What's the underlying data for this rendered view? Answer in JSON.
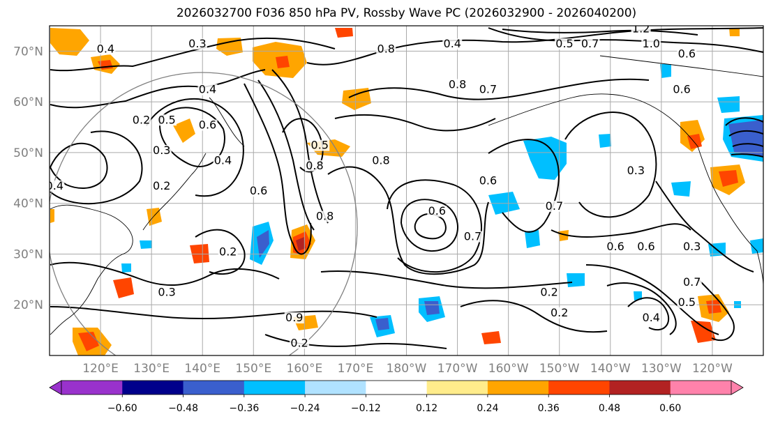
{
  "chart_data": {
    "type": "contour-map",
    "title": "2026032700 F036 850 hPa PV, Rossby Wave PC (2026032900 - 2026040200)",
    "lat_ticks": [
      {
        "lat": 70,
        "label": "70°N"
      },
      {
        "lat": 60,
        "label": "60°N"
      },
      {
        "lat": 50,
        "label": "50°N"
      },
      {
        "lat": 40,
        "label": "40°N"
      },
      {
        "lat": 30,
        "label": "30°N"
      },
      {
        "lat": 20,
        "label": "20°N"
      }
    ],
    "lon_ticks": [
      {
        "lon": 120,
        "label": "120°E"
      },
      {
        "lon": 130,
        "label": "130°E"
      },
      {
        "lon": 140,
        "label": "140°E"
      },
      {
        "lon": 150,
        "label": "150°E"
      },
      {
        "lon": 160,
        "label": "160°E"
      },
      {
        "lon": 170,
        "label": "170°E"
      },
      {
        "lon": 180,
        "label": "180°W"
      },
      {
        "lon": 190,
        "label": "170°W"
      },
      {
        "lon": 200,
        "label": "160°W"
      },
      {
        "lon": 210,
        "label": "150°W"
      },
      {
        "lon": 220,
        "label": "140°W"
      },
      {
        "lon": 230,
        "label": "130°W"
      },
      {
        "lon": 240,
        "label": "120°W"
      }
    ],
    "lon_range": [
      110,
      250
    ],
    "lat_range": [
      10,
      75
    ],
    "grid": true,
    "colorbar": {
      "levels": [
        -0.72,
        -0.6,
        -0.48,
        -0.36,
        -0.24,
        -0.12,
        0.12,
        0.24,
        0.36,
        0.48,
        0.6,
        0.72
      ],
      "tick_labels": [
        "−0.60",
        "−0.48",
        "−0.36",
        "−0.24",
        "−0.12",
        "0.12",
        "0.24",
        "0.36",
        "0.48",
        "0.60"
      ],
      "colors": [
        "#9932cc",
        "#00008b",
        "#3a5fcd",
        "#00bfff",
        "#b0e2ff",
        "#ffffff",
        "#ffec8b",
        "#ffa500",
        "#ff4500",
        "#b22222",
        "#ff82ab"
      ],
      "extend": "both"
    },
    "contour_labels": [
      {
        "text": "0.2",
        "lon": 128,
        "lat": 56
      },
      {
        "text": "0.4",
        "lon": 121,
        "lat": 70
      },
      {
        "text": "0.3",
        "lon": 139,
        "lat": 71
      },
      {
        "text": "0.4",
        "lon": 141,
        "lat": 62
      },
      {
        "text": "0.5",
        "lon": 133,
        "lat": 56
      },
      {
        "text": "0.6",
        "lon": 141,
        "lat": 55
      },
      {
        "text": "0.4",
        "lon": 144,
        "lat": 48
      },
      {
        "text": "0.3",
        "lon": 132,
        "lat": 50
      },
      {
        "text": "0.2",
        "lon": 132,
        "lat": 43
      },
      {
        "text": "0.4",
        "lon": 111,
        "lat": 43
      },
      {
        "text": "0.6",
        "lon": 151,
        "lat": 42
      },
      {
        "text": "0.2",
        "lon": 145,
        "lat": 30
      },
      {
        "text": "0.3",
        "lon": 133,
        "lat": 22
      },
      {
        "text": "0.5",
        "lon": 163,
        "lat": 51
      },
      {
        "text": "0.8",
        "lon": 162,
        "lat": 47
      },
      {
        "text": "0.8",
        "lon": 175,
        "lat": 48
      },
      {
        "text": "0.8",
        "lon": 164,
        "lat": 37
      },
      {
        "text": "0.8",
        "lon": 176,
        "lat": 70
      },
      {
        "text": "0.4",
        "lon": 189,
        "lat": 71
      },
      {
        "text": "0.8",
        "lon": 190,
        "lat": 63
      },
      {
        "text": "0.7",
        "lon": 196,
        "lat": 62
      },
      {
        "text": "0.5",
        "lon": 211,
        "lat": 71
      },
      {
        "text": "0.7",
        "lon": 216,
        "lat": 71
      },
      {
        "text": "1.2",
        "lon": 226,
        "lat": 74
      },
      {
        "text": "1.0",
        "lon": 228,
        "lat": 71
      },
      {
        "text": "0.6",
        "lon": 235,
        "lat": 69
      },
      {
        "text": "0.6",
        "lon": 234,
        "lat": 62
      },
      {
        "text": "0.6",
        "lon": 186,
        "lat": 38
      },
      {
        "text": "0.7",
        "lon": 193,
        "lat": 33
      },
      {
        "text": "0.7",
        "lon": 209,
        "lat": 39
      },
      {
        "text": "0.6",
        "lon": 221,
        "lat": 31
      },
      {
        "text": "0.6",
        "lon": 227,
        "lat": 31
      },
      {
        "text": "0.3",
        "lon": 225,
        "lat": 46
      },
      {
        "text": "0.3",
        "lon": 236,
        "lat": 31
      },
      {
        "text": "0.2",
        "lon": 208,
        "lat": 22
      },
      {
        "text": "0.2",
        "lon": 210,
        "lat": 18
      },
      {
        "text": "0.4",
        "lon": 228,
        "lat": 17
      },
      {
        "text": "0.5",
        "lon": 235,
        "lat": 20
      },
      {
        "text": "0.7",
        "lon": 236,
        "lat": 24
      },
      {
        "text": "0.9",
        "lon": 158,
        "lat": 17
      },
      {
        "text": "0.2",
        "lon": 159,
        "lat": 12
      },
      {
        "text": "0.6",
        "lon": 196,
        "lat": 44
      }
    ]
  }
}
